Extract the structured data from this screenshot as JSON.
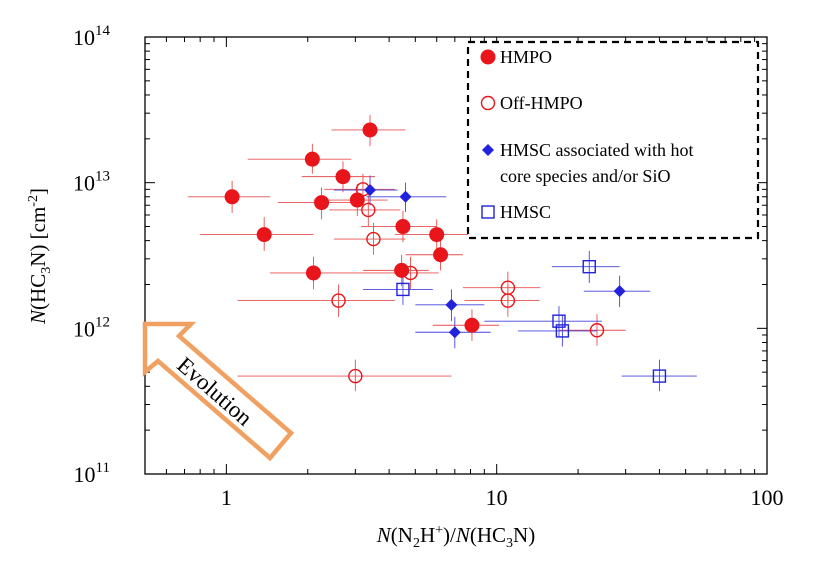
{
  "chart_data": {
    "type": "scatter",
    "title": "",
    "xlabel": {
      "italic": "N",
      "text": "(N",
      "sub1": "2",
      "mid": "H",
      "sup": "+",
      "mid2": ")/",
      "italic2": "N",
      "text2": "(HC",
      "sub2": "3",
      "end": "N)"
    },
    "ylabel": {
      "italic": "N",
      "text": "(HC",
      "sub": "3",
      "mid": "N) [cm",
      "sup": "-2",
      "end": "]"
    },
    "xscale": "log",
    "yscale": "log",
    "xlim": [
      0.5,
      100
    ],
    "ylim": [
      100000000000.0,
      100000000000000.0
    ],
    "x_ticks": [
      {
        "value": 1,
        "label": "1"
      },
      {
        "value": 10,
        "label": "10"
      },
      {
        "value": 100,
        "label": "100"
      }
    ],
    "y_ticks": [
      {
        "value": 100000000000.0,
        "base": "10",
        "exp": "11"
      },
      {
        "value": 1000000000000.0,
        "base": "10",
        "exp": "12"
      },
      {
        "value": 10000000000000.0,
        "base": "10",
        "exp": "13"
      },
      {
        "value": 100000000000000.0,
        "base": "10",
        "exp": "14"
      }
    ],
    "colors": {
      "red": "#e8151b",
      "blue": "#2222dd",
      "red_err": "#e85050",
      "blue_err": "#4444dd",
      "arrow": "#f0a060"
    },
    "series": [
      {
        "name": "HMPO",
        "marker": "filled-circle",
        "color": "red",
        "points": [
          {
            "x": 1.05,
            "y": 8000000000000.0,
            "xlo": 0.72,
            "xhi": 1.45,
            "ylo": 6200000000000.0,
            "yhi": 10300000000000.0
          },
          {
            "x": 1.38,
            "y": 4400000000000.0,
            "xlo": 0.8,
            "xhi": 2.1,
            "ylo": 3400000000000.0,
            "yhi": 5800000000000.0
          },
          {
            "x": 2.08,
            "y": 14500000000000.0,
            "xlo": 1.2,
            "xhi": 2.9,
            "ylo": 11500000000000.0,
            "yhi": 18500000000000.0
          },
          {
            "x": 2.7,
            "y": 11000000000000.0,
            "xlo": 1.9,
            "xhi": 3.55,
            "ylo": 8600000000000.0,
            "yhi": 14000000000000.0
          },
          {
            "x": 3.4,
            "y": 23000000000000.0,
            "xlo": 2.45,
            "xhi": 4.6,
            "ylo": 17800000000000.0,
            "yhi": 29200000000000.0
          },
          {
            "x": 2.25,
            "y": 7300000000000.0,
            "xlo": 1.55,
            "xhi": 3.05,
            "ylo": 5600000000000.0,
            "yhi": 9300000000000.0
          },
          {
            "x": 3.05,
            "y": 7600000000000.0,
            "xlo": 2.1,
            "xhi": 3.95,
            "ylo": 5900000000000.0,
            "yhi": 9800000000000.0
          },
          {
            "x": 2.1,
            "y": 2400000000000.0,
            "xlo": 1.45,
            "xhi": 3.4,
            "ylo": 1850000000000.0,
            "yhi": 3100000000000.0
          },
          {
            "x": 4.5,
            "y": 5000000000000.0,
            "xlo": 3.15,
            "xhi": 6.0,
            "ylo": 3900000000000.0,
            "yhi": 6400000000000.0
          },
          {
            "x": 6.0,
            "y": 4400000000000.0,
            "xlo": 4.2,
            "xhi": 8.0,
            "ylo": 3400000000000.0,
            "yhi": 5600000000000.0
          },
          {
            "x": 6.2,
            "y": 3200000000000.0,
            "xlo": 4.6,
            "xhi": 7.5,
            "ylo": 2500000000000.0,
            "yhi": 4100000000000.0
          },
          {
            "x": 4.45,
            "y": 2500000000000.0,
            "xlo": 3.2,
            "xhi": 5.6,
            "ylo": 1950000000000.0,
            "yhi": 3200000000000.0
          },
          {
            "x": 8.1,
            "y": 1050000000000.0,
            "xlo": 5.8,
            "xhi": 10.2,
            "ylo": 820000000000.0,
            "yhi": 1350000000000.0
          }
        ]
      },
      {
        "name": "Off-HMPO",
        "marker": "open-circle",
        "color": "red",
        "points": [
          {
            "x": 3.2,
            "y": 9000000000000.0,
            "xlo": 2.3,
            "xhi": 4.2,
            "ylo": 7000000000000.0,
            "yhi": 11500000000000.0
          },
          {
            "x": 3.35,
            "y": 6500000000000.0,
            "xlo": 2.4,
            "xhi": 4.4,
            "ylo": 5000000000000.0,
            "yhi": 8400000000000.0
          },
          {
            "x": 3.5,
            "y": 4100000000000.0,
            "xlo": 2.5,
            "xhi": 4.6,
            "ylo": 3200000000000.0,
            "yhi": 5300000000000.0
          },
          {
            "x": 4.8,
            "y": 2400000000000.0,
            "xlo": 3.4,
            "xhi": 6.1,
            "ylo": 1850000000000.0,
            "yhi": 3100000000000.0
          },
          {
            "x": 2.6,
            "y": 1550000000000.0,
            "xlo": 1.1,
            "xhi": 4.2,
            "ylo": 1200000000000.0,
            "yhi": 2000000000000.0
          },
          {
            "x": 11.0,
            "y": 1900000000000.0,
            "xlo": 7.5,
            "xhi": 14.5,
            "ylo": 1480000000000.0,
            "yhi": 2450000000000.0
          },
          {
            "x": 11.0,
            "y": 1550000000000.0,
            "xlo": 7.6,
            "xhi": 14.4,
            "ylo": 1200000000000.0,
            "yhi": 2000000000000.0
          },
          {
            "x": 23.5,
            "y": 970000000000.0,
            "xlo": 17.0,
            "xhi": 30.0,
            "ylo": 760000000000.0,
            "yhi": 1250000000000.0
          },
          {
            "x": 3.0,
            "y": 470000000000.0,
            "xlo": 1.1,
            "xhi": 6.8,
            "ylo": 370000000000.0,
            "yhi": 610000000000.0
          }
        ]
      },
      {
        "name": "HMSC associated with hot core species and/or SiO",
        "marker": "filled-diamond",
        "color": "blue",
        "points": [
          {
            "x": 3.4,
            "y": 8900000000000.0,
            "xlo": 2.5,
            "xhi": 4.3,
            "ylo": 7000000000000.0,
            "yhi": 11200000000000.0
          },
          {
            "x": 4.6,
            "y": 8000000000000.0,
            "xlo": 3.3,
            "xhi": 6.5,
            "ylo": 6300000000000.0,
            "yhi": 10000000000000.0
          },
          {
            "x": 6.8,
            "y": 1450000000000.0,
            "xlo": 5.0,
            "xhi": 9.0,
            "ylo": 1120000000000.0,
            "yhi": 1850000000000.0
          },
          {
            "x": 7.0,
            "y": 940000000000.0,
            "xlo": 5.0,
            "xhi": 9.5,
            "ylo": 730000000000.0,
            "yhi": 1200000000000.0
          },
          {
            "x": 28.5,
            "y": 1800000000000.0,
            "xlo": 21.0,
            "xhi": 37.0,
            "ylo": 1400000000000.0,
            "yhi": 2300000000000.0
          }
        ]
      },
      {
        "name": "HMSC",
        "marker": "open-square",
        "color": "blue",
        "points": [
          {
            "x": 4.5,
            "y": 1850000000000.0,
            "xlo": 3.2,
            "xhi": 5.8,
            "ylo": 1450000000000.0,
            "yhi": 2350000000000.0
          },
          {
            "x": 22.0,
            "y": 2650000000000.0,
            "xlo": 16.0,
            "xhi": 28.5,
            "ylo": 2050000000000.0,
            "yhi": 3400000000000.0
          },
          {
            "x": 17.0,
            "y": 1120000000000.0,
            "xlo": 9.0,
            "xhi": 24.5,
            "ylo": 880000000000.0,
            "yhi": 1420000000000.0
          },
          {
            "x": 17.5,
            "y": 960000000000.0,
            "xlo": 12.0,
            "xhi": 23.5,
            "ylo": 750000000000.0,
            "yhi": 1230000000000.0
          },
          {
            "x": 40.0,
            "y": 470000000000.0,
            "xlo": 29.0,
            "xhi": 55.0,
            "ylo": 370000000000.0,
            "yhi": 610000000000.0
          }
        ]
      }
    ],
    "legend": {
      "placement": "top-right",
      "entries": [
        {
          "marker": "filled-circle",
          "color": "red",
          "lines": [
            "HMPO"
          ]
        },
        {
          "marker": "open-circle",
          "color": "red",
          "lines": [
            "Off-HMPO"
          ]
        },
        {
          "marker": "filled-diamond",
          "color": "blue",
          "lines": [
            "HMSC associated with hot",
            "core species and/or SiO"
          ]
        },
        {
          "marker": "open-square",
          "color": "blue",
          "lines": [
            "HMSC"
          ]
        }
      ]
    },
    "annotation": {
      "text": "Evolution",
      "direction": "toward low x, high y"
    }
  }
}
